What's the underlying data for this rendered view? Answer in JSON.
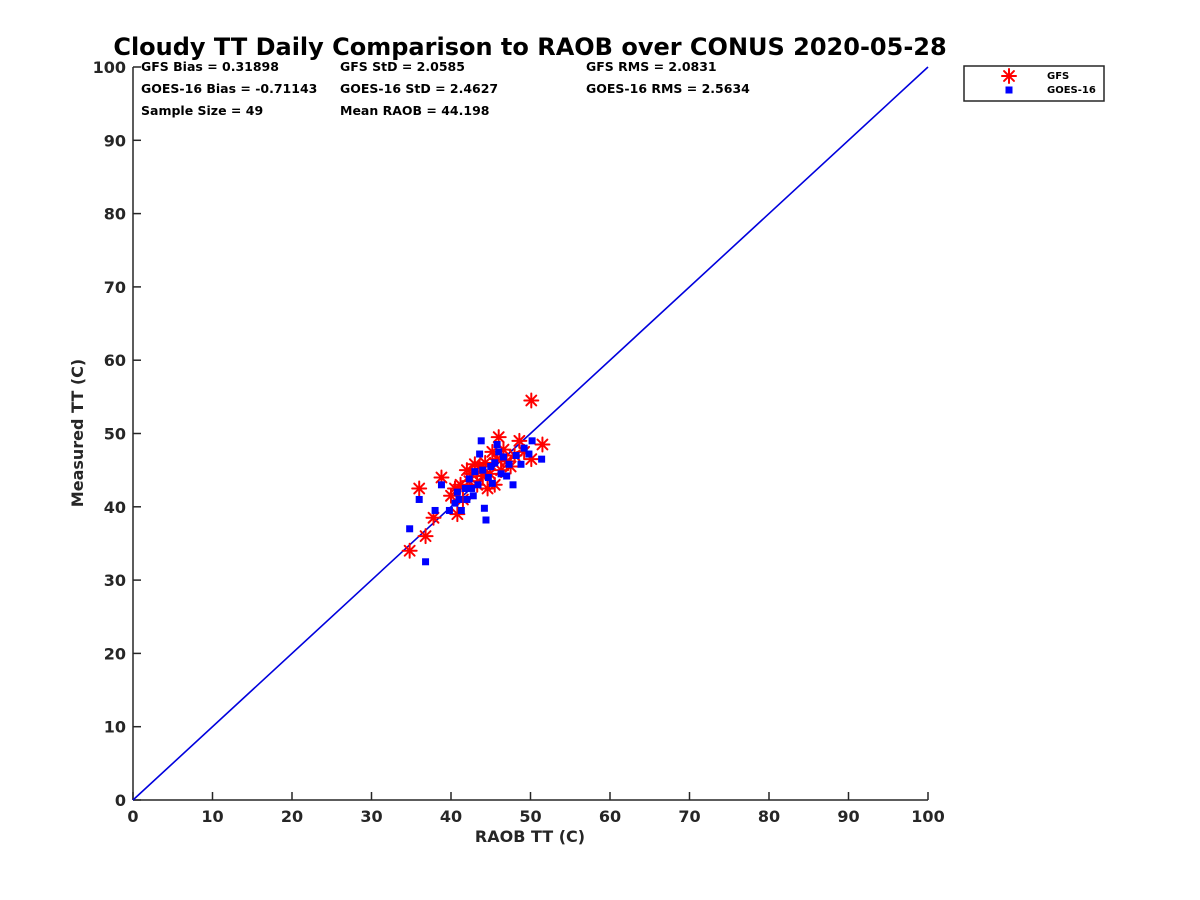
{
  "chart_data": {
    "type": "scatter",
    "title": "Cloudy TT Daily Comparison to RAOB over CONUS 2020-05-28",
    "xlabel": "RAOB TT (C)",
    "ylabel": "Measured TT (C)",
    "xlim": [
      0,
      100
    ],
    "ylim": [
      0,
      100
    ],
    "xticks": [
      "0",
      "10",
      "20",
      "30",
      "40",
      "50",
      "60",
      "70",
      "80",
      "90",
      "100"
    ],
    "yticks": [
      "0",
      "10",
      "20",
      "30",
      "40",
      "50",
      "60",
      "70",
      "80",
      "90",
      "100"
    ],
    "grid": false,
    "legend_position": "outside-top-right",
    "stats": [
      [
        "GFS Bias = 0.31898",
        "GFS StD = 2.0585",
        "GFS RMS = 2.0831"
      ],
      [
        "GOES-16 Bias = -0.71143",
        "GOES-16 StD = 2.4627",
        "GOES-16 RMS = 2.5634"
      ],
      [
        "Sample Size = 49",
        "Mean RAOB = 44.198"
      ]
    ],
    "reference_line": {
      "x": [
        0,
        100
      ],
      "y": [
        0,
        100
      ],
      "color": "#0000dd"
    },
    "series": [
      {
        "name": "GFS",
        "marker": "asterisk",
        "color": "#ff0000",
        "points": [
          [
            34.8,
            34.0
          ],
          [
            36.0,
            42.5
          ],
          [
            36.8,
            36.0
          ],
          [
            37.8,
            38.5
          ],
          [
            38.8,
            44.0
          ],
          [
            40.0,
            41.5
          ],
          [
            40.5,
            42.5
          ],
          [
            40.8,
            39.0
          ],
          [
            41.2,
            43.0
          ],
          [
            41.5,
            41.0
          ],
          [
            42.0,
            45.0
          ],
          [
            42.3,
            43.5
          ],
          [
            42.6,
            44.5
          ],
          [
            43.0,
            45.8
          ],
          [
            43.3,
            43.0
          ],
          [
            43.6,
            45.5
          ],
          [
            44.0,
            44.2
          ],
          [
            44.3,
            46.0
          ],
          [
            44.6,
            42.5
          ],
          [
            44.9,
            44.5
          ],
          [
            45.2,
            47.5
          ],
          [
            45.5,
            43.0
          ],
          [
            45.8,
            46.5
          ],
          [
            46.0,
            49.5
          ],
          [
            46.3,
            45.0
          ],
          [
            46.6,
            47.8
          ],
          [
            47.0,
            46.2
          ],
          [
            47.5,
            45.5
          ],
          [
            48.0,
            47.0
          ],
          [
            48.6,
            49.0
          ],
          [
            49.2,
            47.5
          ],
          [
            50.1,
            46.5
          ],
          [
            50.1,
            54.5
          ],
          [
            51.5,
            48.5
          ]
        ]
      },
      {
        "name": "GOES-16",
        "marker": "square",
        "color": "#0000ff",
        "points": [
          [
            34.8,
            37.0
          ],
          [
            36.0,
            41.0
          ],
          [
            36.8,
            32.5
          ],
          [
            38.0,
            39.5
          ],
          [
            38.8,
            43.0
          ],
          [
            39.8,
            39.5
          ],
          [
            40.5,
            40.5
          ],
          [
            40.8,
            42.0
          ],
          [
            41.0,
            41.0
          ],
          [
            41.3,
            39.5
          ],
          [
            41.8,
            42.5
          ],
          [
            42.0,
            41.0
          ],
          [
            42.3,
            43.8
          ],
          [
            42.6,
            42.5
          ],
          [
            42.8,
            41.5
          ],
          [
            43.0,
            44.8
          ],
          [
            43.4,
            43.0
          ],
          [
            43.6,
            47.2
          ],
          [
            43.8,
            49.0
          ],
          [
            44.0,
            45.0
          ],
          [
            44.2,
            39.8
          ],
          [
            44.4,
            38.2
          ],
          [
            44.7,
            44.0
          ],
          [
            45.0,
            45.5
          ],
          [
            45.2,
            43.2
          ],
          [
            45.5,
            46.0
          ],
          [
            45.8,
            48.5
          ],
          [
            46.0,
            47.5
          ],
          [
            46.3,
            44.5
          ],
          [
            46.6,
            46.8
          ],
          [
            47.0,
            44.2
          ],
          [
            47.3,
            45.8
          ],
          [
            47.8,
            43.0
          ],
          [
            48.2,
            47.0
          ],
          [
            48.8,
            45.8
          ],
          [
            49.2,
            48.0
          ],
          [
            49.8,
            47.2
          ],
          [
            50.2,
            49.0
          ],
          [
            51.4,
            46.5
          ]
        ]
      }
    ]
  }
}
